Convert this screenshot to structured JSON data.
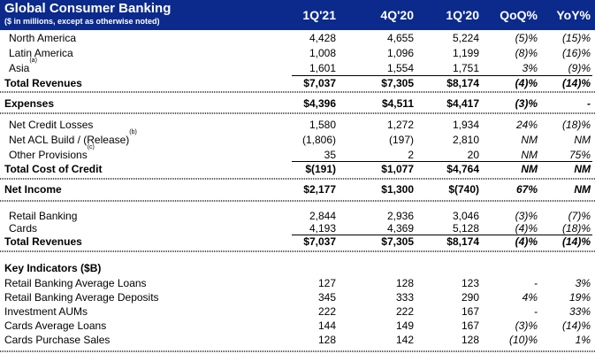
{
  "header": {
    "title": "Global Consumer Banking",
    "subtitle": "($ in millions, except as otherwise noted)",
    "columns": [
      "1Q'21",
      "4Q'20",
      "1Q'20",
      "QoQ%",
      "YoY%"
    ]
  },
  "rows": {
    "north_america": {
      "label": "North America",
      "v": [
        "4,428",
        "4,655",
        "5,224",
        "(5)%",
        "(15)%"
      ]
    },
    "latin_america": {
      "label": "Latin America",
      "v": [
        "1,008",
        "1,096",
        "1,199",
        "(8)%",
        "(16)%"
      ]
    },
    "asia": {
      "label": "Asia",
      "note": "(a)",
      "v": [
        "1,601",
        "1,554",
        "1,751",
        "3%",
        "(9)%"
      ]
    },
    "total_revenues": {
      "label": "Total Revenues",
      "v": [
        "$7,037",
        "$7,305",
        "$8,174",
        "(4)%",
        "(14)%"
      ]
    },
    "expenses": {
      "label": "Expenses",
      "v": [
        "$4,396",
        "$4,511",
        "$4,417",
        "(3)%",
        "-"
      ]
    },
    "net_credit_losses": {
      "label": "Net Credit Losses",
      "v": [
        "1,580",
        "1,272",
        "1,934",
        "24%",
        "(18)%"
      ]
    },
    "net_acl": {
      "label": "Net ACL Build / (Release)",
      "note": "(b)",
      "v": [
        "(1,806)",
        "(197)",
        "2,810",
        "NM",
        "NM"
      ]
    },
    "other_provisions": {
      "label": "Other Provisions",
      "note": "(c)",
      "v": [
        "35",
        "2",
        "20",
        "NM",
        "75%"
      ]
    },
    "total_cost_credit": {
      "label": "Total Cost of Credit",
      "v": [
        "$(191)",
        "$1,077",
        "$4,764",
        "NM",
        "NM"
      ]
    },
    "net_income": {
      "label": "Net Income",
      "v": [
        "$2,177",
        "$1,300",
        "$(740)",
        "67%",
        "NM"
      ]
    },
    "retail_banking": {
      "label": "Retail Banking",
      "v": [
        "2,844",
        "2,936",
        "3,046",
        "(3)%",
        "(7)%"
      ]
    },
    "cards": {
      "label": "Cards",
      "v": [
        "4,193",
        "4,369",
        "5,128",
        "(4)%",
        "(18)%"
      ]
    },
    "total_revenues_2": {
      "label": "Total Revenues",
      "v": [
        "$7,037",
        "$7,305",
        "$8,174",
        "(4)%",
        "(14)%"
      ]
    },
    "key_indicators": {
      "label": "Key Indicators ($B)"
    },
    "rb_avg_loans": {
      "label": "Retail Banking Average Loans",
      "v": [
        "127",
        "128",
        "123",
        "-",
        "3%"
      ]
    },
    "rb_avg_deposits": {
      "label": "Retail Banking Average Deposits",
      "v": [
        "345",
        "333",
        "290",
        "4%",
        "19%"
      ]
    },
    "investment_aums": {
      "label": "Investment AUMs",
      "v": [
        "222",
        "222",
        "167",
        "-",
        "33%"
      ]
    },
    "cards_avg_loans": {
      "label": "Cards Average Loans",
      "v": [
        "144",
        "149",
        "167",
        "(3)%",
        "(14)%"
      ]
    },
    "cards_purchase_sales": {
      "label": "Cards Purchase Sales",
      "v": [
        "128",
        "142",
        "128",
        "(10)%",
        "1%"
      ]
    }
  }
}
